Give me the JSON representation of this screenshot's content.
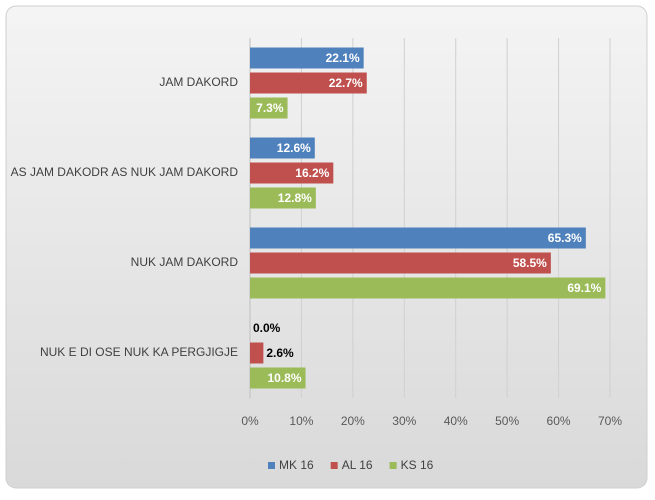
{
  "chart_data": {
    "type": "bar",
    "orientation": "horizontal",
    "categories": [
      "JAM DAKORD",
      "AS JAM DAKODR AS NUK JAM DAKORD",
      "NUK JAM DAKORD",
      "NUK E DI OSE NUK KA PERGJIGJE"
    ],
    "series": [
      {
        "name": "MK 16",
        "color": "#4f81bd",
        "values": [
          22.1,
          12.6,
          65.3,
          0.0
        ],
        "value_labels": [
          "22.1%",
          "12.6%",
          "65.3%",
          "0.0%"
        ]
      },
      {
        "name": "AL 16",
        "color": "#c0504d",
        "values": [
          22.7,
          16.2,
          58.5,
          2.6
        ],
        "value_labels": [
          "22.7%",
          "16.2%",
          "58.5%",
          "2.6%"
        ]
      },
      {
        "name": "KS 16",
        "color": "#9bbb59",
        "values": [
          7.3,
          12.8,
          69.1,
          10.8
        ],
        "value_labels": [
          "7.3%",
          "12.8%",
          "69.1%",
          "10.8%"
        ]
      }
    ],
    "xlim": [
      0,
      70
    ],
    "xticks": [
      {
        "value": 0,
        "label": "0%"
      },
      {
        "value": 10,
        "label": "10%"
      },
      {
        "value": 20,
        "label": "20%"
      },
      {
        "value": 30,
        "label": "30%"
      },
      {
        "value": 40,
        "label": "40%"
      },
      {
        "value": 50,
        "label": "50%"
      },
      {
        "value": 60,
        "label": "60%"
      },
      {
        "value": 70,
        "label": "70%"
      }
    ],
    "grid": true,
    "legend": "bottom"
  }
}
